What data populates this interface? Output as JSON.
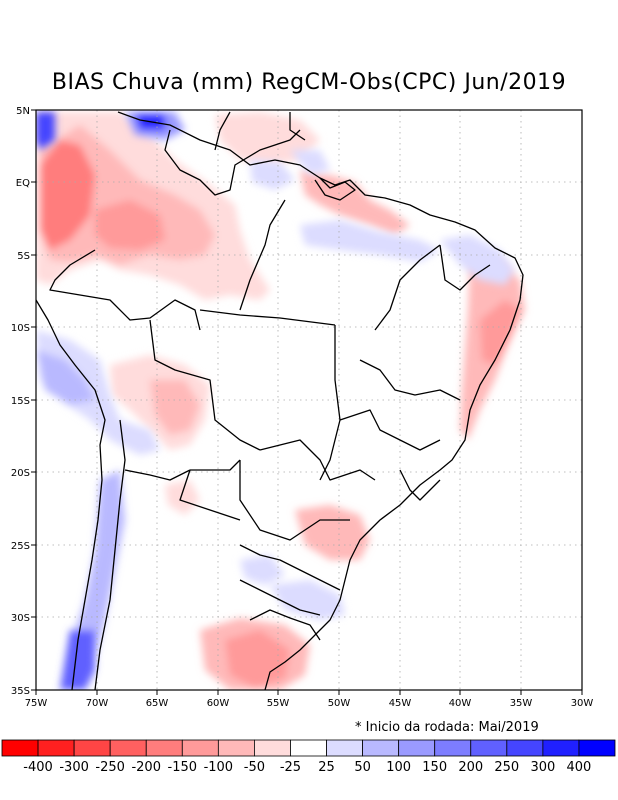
{
  "title": "BIAS Chuva (mm) RegCM-Obs(CPC) Jun/2019",
  "footnote": "* Inicio da rodada: Mai/2019",
  "axes": {
    "lon_labels": [
      "75W",
      "70W",
      "65W",
      "60W",
      "55W",
      "50W",
      "45W",
      "40W",
      "35W",
      "30W"
    ],
    "lat_labels": [
      "5N",
      "EQ",
      "5S",
      "10S",
      "15S",
      "20S",
      "25S",
      "30S",
      "35S"
    ],
    "lon_range": [
      -75,
      -30
    ],
    "lat_range": [
      -35,
      5
    ]
  },
  "colorbar": {
    "labels": [
      "-400",
      "-300",
      "-250",
      "-200",
      "-150",
      "-100",
      "-50",
      "-25",
      "25",
      "50",
      "100",
      "150",
      "200",
      "250",
      "300",
      "400"
    ],
    "colors": [
      "#ff0000",
      "#ff2020",
      "#ff4545",
      "#ff6060",
      "#ff7d7d",
      "#ff9a9a",
      "#ffb9b9",
      "#ffdcdc",
      "#ffffff",
      "#dcdcff",
      "#b9b9ff",
      "#9a9aff",
      "#7d7dff",
      "#6060ff",
      "#4545ff",
      "#2020ff",
      "#0000ff"
    ]
  }
}
